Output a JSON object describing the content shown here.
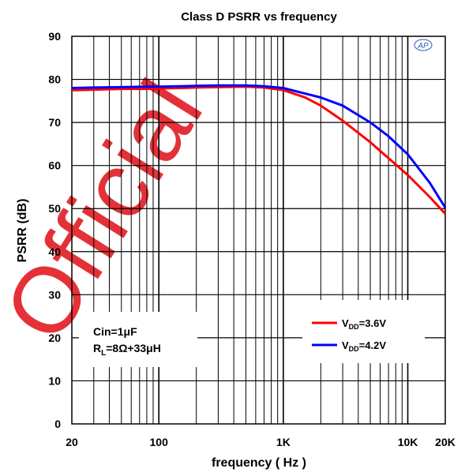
{
  "watermark": "Official",
  "logo": "AP",
  "chart_data": {
    "type": "line",
    "title": "Class D PSRR vs frequency",
    "xlabel": "frequency ( Hz )",
    "ylabel": "PSRR (dB)",
    "xscale": "log",
    "xlim": [
      20,
      20000
    ],
    "ylim": [
      0,
      90
    ],
    "x_ticks": [
      {
        "value": 20,
        "label": "20"
      },
      {
        "value": 100,
        "label": "100"
      },
      {
        "value": 1000,
        "label": "1K"
      },
      {
        "value": 10000,
        "label": "10K"
      },
      {
        "value": 20000,
        "label": "20K"
      }
    ],
    "y_ticks": [
      0,
      10,
      20,
      30,
      40,
      50,
      60,
      70,
      80,
      90
    ],
    "grid": true,
    "legend_position": "bottom-right",
    "annotation": {
      "line1": "Cin=1μF",
      "line2_main": "R",
      "line2_sub": "L",
      "line2_rest": "=8Ω+33μH"
    },
    "series": [
      {
        "name": "VDD=3.6V",
        "name_main": "V",
        "name_sub": "DD",
        "name_rest": "=3.6V",
        "color": "#ff0000",
        "x": [
          20,
          30,
          50,
          80,
          100,
          150,
          200,
          300,
          500,
          700,
          1000,
          1500,
          2000,
          3000,
          5000,
          7000,
          10000,
          15000,
          20000
        ],
        "y": [
          77.5,
          77.6,
          77.8,
          77.8,
          77.9,
          78.0,
          78.1,
          78.2,
          78.3,
          78.1,
          77.5,
          75.8,
          73.9,
          70.4,
          65.4,
          61.7,
          57.8,
          52.7,
          48.8
        ]
      },
      {
        "name": "VDD=4.2V",
        "name_main": "V",
        "name_sub": "DD",
        "name_rest": "=4.2V",
        "color": "#0000ff",
        "x": [
          20,
          30,
          50,
          80,
          100,
          150,
          200,
          300,
          500,
          700,
          1000,
          1500,
          2000,
          3000,
          5000,
          7000,
          10000,
          15000,
          20000
        ],
        "y": [
          78.0,
          78.1,
          78.2,
          78.3,
          78.3,
          78.4,
          78.5,
          78.6,
          78.6,
          78.4,
          78.0,
          76.7,
          75.8,
          73.9,
          70.0,
          66.8,
          62.6,
          56.0,
          50.2
        ]
      }
    ]
  }
}
